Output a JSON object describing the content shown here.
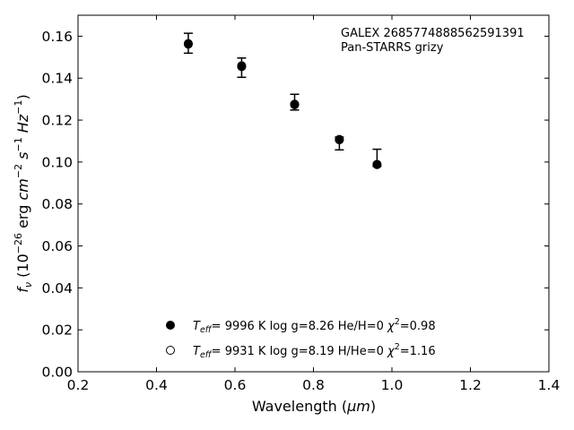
{
  "chart_data": {
    "type": "scatter",
    "xlabel_prefix": "Wavelength (",
    "xlabel_unit": "μm",
    "xlabel_suffix": ")",
    "ylabel": {
      "var": "f",
      "var_sub": "ν",
      "open": " (10",
      "exp1": "−26",
      "mid1": " erg ",
      "cm": "cm",
      "exp2": "−2",
      "s": " s",
      "exp3": "−1",
      "hz": " Hz",
      "exp4": "−1",
      "close": ")"
    },
    "xlim": [
      0.2,
      1.4
    ],
    "ylim": [
      0.0,
      0.17
    ],
    "x_ticks": [
      0.2,
      0.4,
      0.6,
      0.8,
      1.0,
      1.2,
      1.4
    ],
    "x_tick_labels": [
      "0.2",
      "0.4",
      "0.6",
      "0.8",
      "1.0",
      "1.2",
      "1.4"
    ],
    "y_ticks": [
      0.0,
      0.02,
      0.04,
      0.06,
      0.08,
      0.1,
      0.12,
      0.14,
      0.16
    ],
    "y_tick_labels": [
      "0.00",
      "0.02",
      "0.04",
      "0.06",
      "0.08",
      "0.10",
      "0.12",
      "0.14",
      "0.16"
    ],
    "grid": false,
    "annotation": [
      "GALEX 2685774888562591391",
      "Pan-STARRS grizy"
    ],
    "observed": {
      "x": [
        0.481,
        0.617,
        0.752,
        0.866,
        0.962
      ],
      "y": [
        0.1564,
        0.1451,
        0.1283,
        0.1112,
        0.0994
      ],
      "err_low": [
        0.1519,
        0.1404,
        0.1248,
        0.1058,
        0.0979
      ],
      "err_high": [
        0.1614,
        0.1496,
        0.1323,
        0.1119,
        0.1061
      ]
    },
    "series": [
      {
        "marker": "filled-circle",
        "x": [
          0.481,
          0.617,
          0.752,
          0.866,
          0.962
        ],
        "y": [
          0.1562,
          0.1455,
          0.1273,
          0.1106,
          0.0988
        ],
        "legend_teff": "9996 K",
        "legend_logg": "log g=8.26",
        "legend_comp": "He/H=0",
        "legend_chi": "=0.98"
      },
      {
        "marker": "open-circle",
        "x": [
          0.481,
          0.617,
          0.752,
          0.866,
          0.962
        ],
        "y": [
          0.1565,
          0.1459,
          0.1276,
          0.1108,
          0.0989
        ],
        "legend_teff": "9931 K",
        "legend_logg": "log g=8.19",
        "legend_comp": "H/He=0",
        "legend_chi": "=1.16"
      }
    ],
    "legend_position": "lower-center",
    "legend_T": "T",
    "legend_T_sub": "eff",
    "legend_eq": "=",
    "legend_chi_symbol": "χ",
    "legend_chi_exp": "2"
  }
}
